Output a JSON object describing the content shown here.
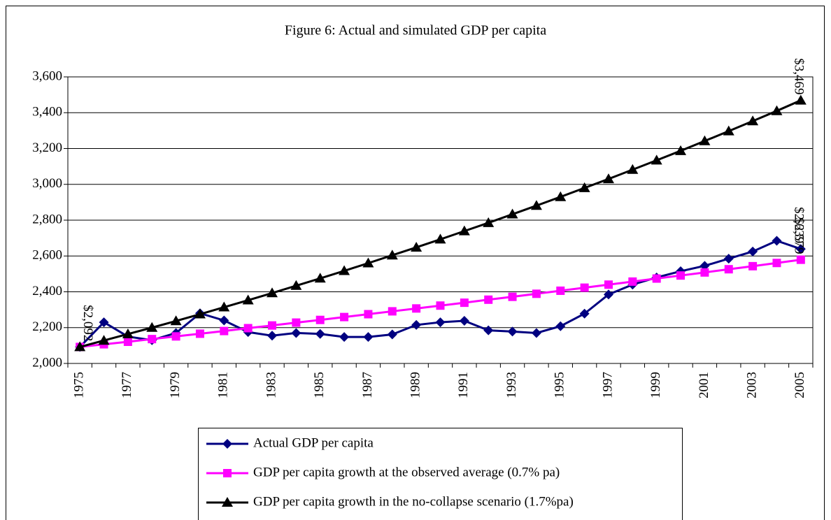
{
  "chart_data": {
    "type": "line",
    "title": "Figure 6: Actual and simulated GDP per capita",
    "categories": [
      "1975",
      null,
      "1977",
      null,
      "1979",
      null,
      "1981",
      null,
      "1983",
      null,
      "1985",
      null,
      "1987",
      null,
      "1989",
      null,
      "1991",
      null,
      "1993",
      null,
      "1995",
      null,
      "1997",
      null,
      "1999",
      null,
      "2001",
      null,
      "2003",
      null,
      "2005"
    ],
    "series": [
      {
        "name": "Actual GDP per capita",
        "color": "#000080",
        "marker": "diamond",
        "values": [
          2092,
          2230,
          2150,
          2130,
          2170,
          2280,
          2240,
          2175,
          2155,
          2170,
          2165,
          2148,
          2148,
          2162,
          2215,
          2230,
          2238,
          2185,
          2178,
          2170,
          2208,
          2278,
          2385,
          2440,
          2480,
          2515,
          2545,
          2585,
          2625,
          2685,
          2639
        ],
        "value_labels": [
          "$2,092",
          null,
          null,
          null,
          null,
          null,
          null,
          null,
          null,
          null,
          null,
          null,
          null,
          null,
          null,
          null,
          null,
          null,
          null,
          null,
          null,
          null,
          null,
          null,
          null,
          null,
          null,
          null,
          null,
          null,
          "$2,639"
        ]
      },
      {
        "name": "GDP per capita growth at the observed average (0.7% pa)",
        "color": "#ff00ff",
        "marker": "square",
        "values": [
          2092,
          2107,
          2121,
          2136,
          2151,
          2166,
          2181,
          2197,
          2212,
          2228,
          2243,
          2259,
          2275,
          2291,
          2307,
          2323,
          2339,
          2356,
          2372,
          2389,
          2406,
          2423,
          2440,
          2457,
          2474,
          2491,
          2508,
          2526,
          2543,
          2561,
          2579
        ],
        "value_labels": [
          null,
          null,
          null,
          null,
          null,
          null,
          null,
          null,
          null,
          null,
          null,
          null,
          null,
          null,
          null,
          null,
          null,
          null,
          null,
          null,
          null,
          null,
          null,
          null,
          null,
          null,
          null,
          null,
          null,
          null,
          "$2,579"
        ]
      },
      {
        "name": "GDP per capita growth in the no-collapse scenario (1.7%pa)",
        "color": "#000000",
        "marker": "triangle",
        "values": [
          2092,
          2128,
          2164,
          2200,
          2237,
          2275,
          2314,
          2353,
          2393,
          2434,
          2475,
          2517,
          2560,
          2604,
          2648,
          2693,
          2739,
          2785,
          2833,
          2881,
          2930,
          2980,
          3030,
          3082,
          3134,
          3187,
          3242,
          3297,
          3353,
          3410,
          3469
        ],
        "value_labels": [
          null,
          null,
          null,
          null,
          null,
          null,
          null,
          null,
          null,
          null,
          null,
          null,
          null,
          null,
          null,
          null,
          null,
          null,
          null,
          null,
          null,
          null,
          null,
          null,
          null,
          null,
          null,
          null,
          null,
          null,
          "$3,469"
        ]
      }
    ],
    "ylim": [
      2000,
      3600
    ],
    "yticks": [
      {
        "value": 2000,
        "label": "2,000"
      },
      {
        "value": 2200,
        "label": "2,200"
      },
      {
        "value": 2400,
        "label": "2,400"
      },
      {
        "value": 2600,
        "label": "2,600"
      },
      {
        "value": 2800,
        "label": "2,800"
      },
      {
        "value": 3000,
        "label": "3,000"
      },
      {
        "value": 3200,
        "label": "3,200"
      },
      {
        "value": 3400,
        "label": "3,400"
      },
      {
        "value": 3600,
        "label": "3,600"
      }
    ],
    "grid": true,
    "legend": "bottom"
  }
}
